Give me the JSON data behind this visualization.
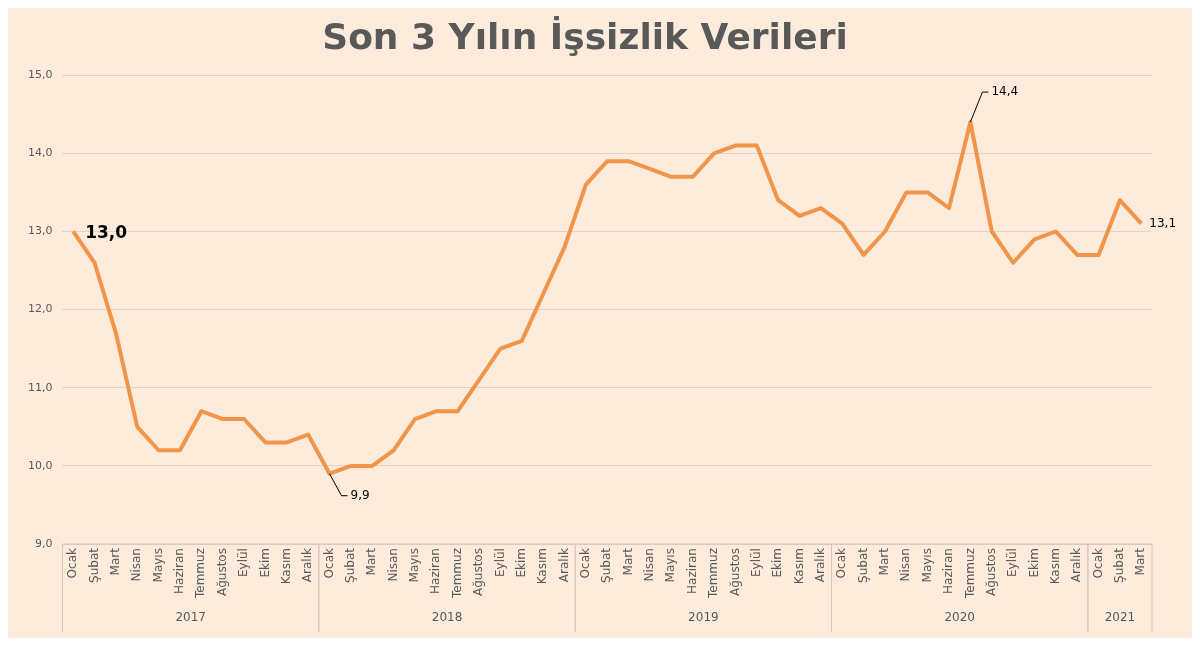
{
  "chart_data": {
    "type": "line",
    "title": "Son 3 Yılın İşsizlik Verileri",
    "categories": [
      "Ocak",
      "Şubat",
      "Mart",
      "Nisan",
      "Mayıs",
      "Haziran",
      "Temmuz",
      "Ağustos",
      "Eylül",
      "Ekim",
      "Kasım",
      "Aralık",
      "Ocak",
      "Şubat",
      "Mart",
      "Nisan",
      "Mayıs",
      "Haziran",
      "Temmuz",
      "Ağustos",
      "Eylül",
      "Ekim",
      "Kasım",
      "Aralık",
      "Ocak",
      "Şubat",
      "Mart",
      "Nisan",
      "Mayıs",
      "Haziran",
      "Temmuz",
      "Ağustos",
      "Eylül",
      "Ekim",
      "Kasım",
      "Aralık",
      "Ocak",
      "Şubat",
      "Mart",
      "Nisan",
      "Mayıs",
      "Haziran",
      "Temmuz",
      "Ağustos",
      "Eylül",
      "Ekim",
      "Kasım",
      "Aralık",
      "Ocak",
      "Şubat",
      "Mart"
    ],
    "series": [
      {
        "color": "#f0954a",
        "values": [
          13.0,
          12.6,
          11.7,
          10.5,
          10.2,
          10.2,
          10.7,
          10.6,
          10.6,
          10.3,
          10.3,
          10.4,
          9.9,
          10.0,
          10.0,
          10.2,
          10.6,
          10.7,
          10.7,
          11.1,
          11.5,
          11.6,
          12.2,
          12.8,
          13.6,
          13.9,
          13.9,
          13.8,
          13.7,
          13.7,
          14.0,
          14.1,
          14.1,
          13.4,
          13.2,
          13.3,
          13.1,
          12.7,
          13.0,
          13.5,
          13.5,
          13.3,
          14.4,
          13.0,
          12.6,
          12.9,
          13.0,
          12.7,
          12.7,
          13.4,
          13.1
        ],
        "value_labels": [
          "13,0",
          null,
          null,
          null,
          null,
          null,
          null,
          null,
          null,
          null,
          null,
          null,
          "9,9",
          null,
          null,
          null,
          null,
          null,
          null,
          null,
          null,
          null,
          null,
          null,
          null,
          null,
          null,
          null,
          null,
          null,
          null,
          null,
          null,
          null,
          null,
          null,
          null,
          null,
          null,
          null,
          null,
          null,
          "14,4",
          null,
          null,
          null,
          null,
          null,
          null,
          null,
          "13,1"
        ]
      }
    ],
    "annotations": [
      "2017",
      "2018",
      "2019",
      "2020",
      "2021"
    ],
    "ylim": [
      9,
      15
    ],
    "yticks": [
      {
        "value": 9,
        "label": "9,0"
      },
      {
        "value": 10,
        "label": "10,0"
      },
      {
        "value": 11,
        "label": "11,0"
      },
      {
        "value": 12,
        "label": "12,0"
      },
      {
        "value": 13,
        "label": "13,0"
      },
      {
        "value": 14,
        "label": "14,0"
      },
      {
        "value": 15,
        "label": "15,0"
      }
    ],
    "grid": "y",
    "legend": false,
    "marker": "none",
    "line_style": "solid"
  }
}
